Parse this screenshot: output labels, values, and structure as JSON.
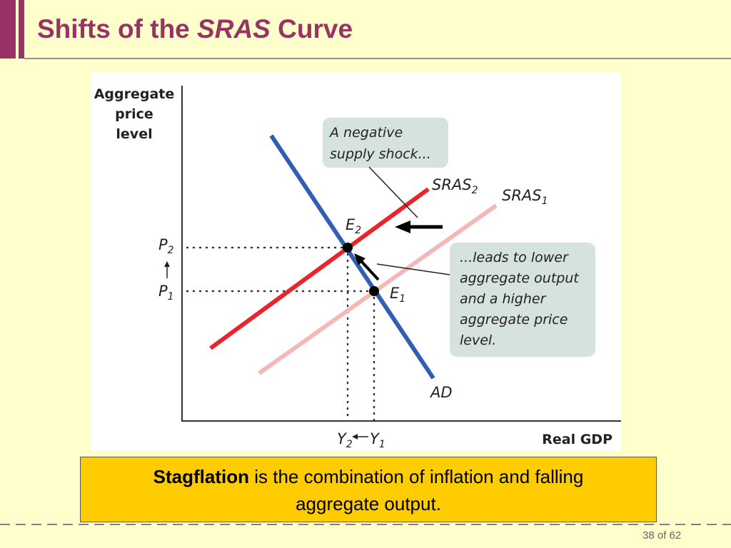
{
  "header": {
    "title": {
      "before": "Shifts of the",
      "italic": "SRAS",
      "after": "Curve"
    }
  },
  "diagram": {
    "y_axis_label": [
      "Aggregate",
      "price",
      "level"
    ],
    "x_axis_label": "Real GDP",
    "callout_top": [
      "A negative",
      "supply shock..."
    ],
    "callout_right": [
      "...leads to lower",
      "aggregate output",
      "and a higher",
      "aggregate price",
      "level."
    ],
    "curves": {
      "sras2": {
        "base": "SRAS",
        "sub": "2"
      },
      "sras1": {
        "base": "SRAS",
        "sub": "1"
      },
      "ad": "AD"
    },
    "points": {
      "e2": {
        "base": "E",
        "sub": "2"
      },
      "e1": {
        "base": "E",
        "sub": "1"
      }
    },
    "prices": {
      "p2": {
        "base": "P",
        "sub": "2"
      },
      "p1": {
        "base": "P",
        "sub": "1"
      }
    },
    "outputs": {
      "y2": {
        "base": "Y",
        "sub": "2"
      },
      "y1": {
        "base": "Y",
        "sub": "1"
      }
    }
  },
  "caption": {
    "bold": "Stagflation",
    "rest": "is the combination of inflation and falling aggregate output."
  },
  "footer": "38 of 62"
}
